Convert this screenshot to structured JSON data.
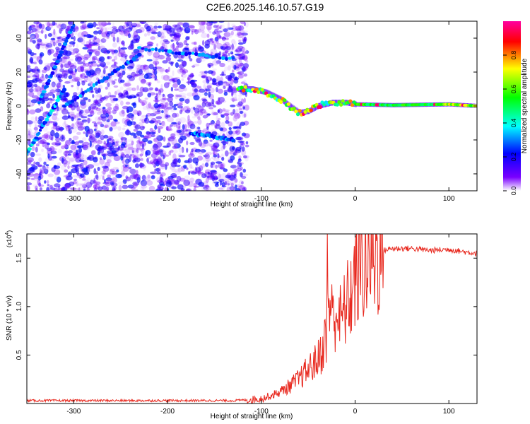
{
  "title": "C2E6.2025.146.10.57.G19",
  "chart_data": [
    {
      "type": "heatmap",
      "xlabel": "Height of straight line (km)",
      "ylabel": "Frequency (Hz)",
      "xlim": [
        -350,
        130
      ],
      "ylim": [
        -50,
        50
      ],
      "x_ticks": [
        -300,
        -200,
        -100,
        0,
        100
      ],
      "x_tick_labels": [
        "-300",
        "-200",
        "-100",
        "0",
        "100"
      ],
      "y_ticks": [
        -40,
        -20,
        0,
        20,
        40
      ],
      "y_tick_labels": [
        "-40",
        "-20",
        "0",
        "20",
        "40"
      ],
      "colorbar": {
        "label": "Normalized spectral amplitude",
        "range": [
          0,
          1
        ],
        "ticks": [
          0.0,
          0.2,
          0.4,
          0.6,
          0.8
        ],
        "tick_labels": [
          "0.0",
          "0.2",
          "0.4",
          "0.6",
          "0.8"
        ],
        "colors": [
          "#ffffff",
          "#7a00ff",
          "#0000ff",
          "#00ffff",
          "#00ff00",
          "#ffff00",
          "#ff0000",
          "#ff00a0"
        ]
      },
      "noise_region_x": [
        -350,
        -115
      ],
      "streaks": [
        {
          "x": [
            -350,
            -310
          ],
          "y": [
            -28,
            10
          ],
          "amplitude": 0.35
        },
        {
          "x": [
            -337,
            -300
          ],
          "y": [
            2,
            48
          ],
          "amplitude": 0.3
        },
        {
          "x": [
            -310,
            -230
          ],
          "y": [
            0,
            30
          ],
          "amplitude": 0.3
        },
        {
          "x": [
            -230,
            -130
          ],
          "y": [
            34,
            28
          ],
          "amplitude": 0.3
        },
        {
          "x": [
            -175,
            -130
          ],
          "y": [
            -16,
            -20
          ],
          "amplitude": 0.3
        }
      ],
      "signal_track": {
        "x": [
          -125,
          -110,
          -95,
          -80,
          -70,
          -60,
          -50,
          -40,
          -25,
          -10,
          0,
          40,
          100,
          130
        ],
        "y": [
          10,
          10,
          8,
          4,
          0,
          -4,
          -3,
          0,
          2,
          2,
          1,
          0.5,
          1,
          0
        ],
        "peak_amplitude": 0.95
      }
    },
    {
      "type": "line",
      "xlabel": "Height of straight line (km)",
      "ylabel": "SNR (10 * v/v)",
      "y_multiplier_label": "(x10",
      "y_multiplier_exp": "4",
      "xlim": [
        -350,
        130
      ],
      "ylim": [
        0,
        1.75
      ],
      "x_ticks": [
        -300,
        -200,
        -100,
        0,
        100
      ],
      "x_tick_labels": [
        "-300",
        "-200",
        "-100",
        "0",
        "100"
      ],
      "y_ticks": [
        0.5,
        1.0,
        1.5
      ],
      "y_tick_labels": [
        "0.5",
        "1.0",
        "1.5"
      ],
      "series": [
        {
          "color": "#e8281e",
          "x": [
            -350,
            -300,
            -200,
            -130,
            -110,
            -100,
            -90,
            -80,
            -70,
            -60,
            -50,
            -40,
            -35,
            -30,
            -27,
            -25,
            -20,
            -15,
            -10,
            -5,
            0,
            10,
            20,
            30,
            40,
            60,
            80,
            100,
            120,
            130
          ],
          "y": [
            0.03,
            0.03,
            0.03,
            0.03,
            0.04,
            0.05,
            0.08,
            0.12,
            0.18,
            0.25,
            0.35,
            0.45,
            0.55,
            0.75,
            1.0,
            0.9,
            0.95,
            0.85,
            1.0,
            1.1,
            1.3,
            1.45,
            1.5,
            1.58,
            1.6,
            1.6,
            1.58,
            1.59,
            1.56,
            1.55
          ]
        }
      ]
    }
  ]
}
